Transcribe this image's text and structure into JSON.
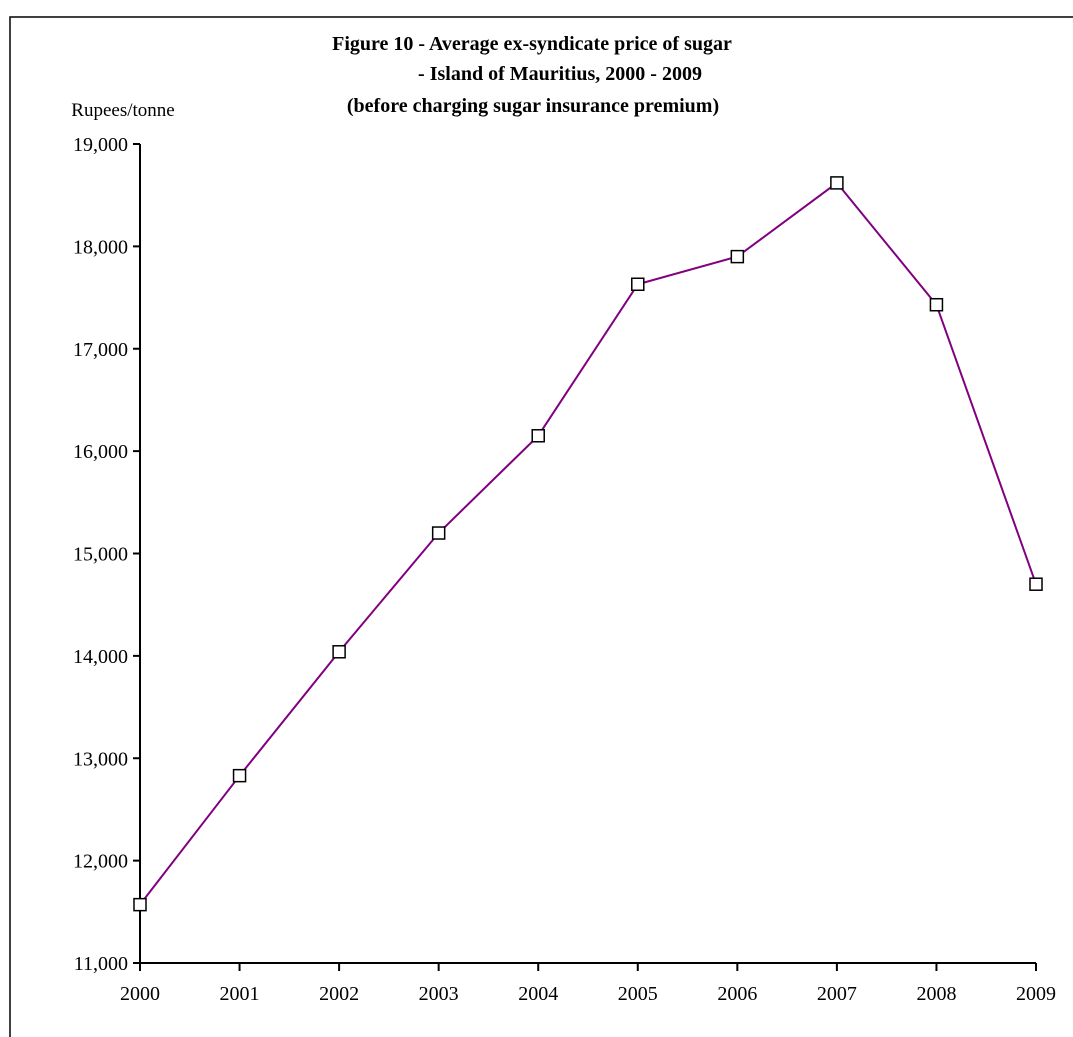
{
  "chart_data": {
    "type": "line",
    "title_lines": [
      "Figure 10 - Average ex-syndicate price of sugar",
      "- Island of Mauritius, 2000 - 2009",
      "(before charging sugar insurance premium)"
    ],
    "ylabel": "Rupees/tonne",
    "xlabel": "",
    "categories": [
      "2000",
      "2001",
      "2002",
      "2003",
      "2004",
      "2005",
      "2006",
      "2007",
      "2008",
      "2009"
    ],
    "ylim": [
      11000,
      19000
    ],
    "ytick_values": [
      11000,
      12000,
      13000,
      14000,
      15000,
      16000,
      17000,
      18000,
      19000
    ],
    "ytick_labels": [
      "11,000",
      "12,000",
      "13,000",
      "14,000",
      "15,000",
      "16,000",
      "17,000",
      "18,000",
      "19,000"
    ],
    "grid": false,
    "series": [
      {
        "values": [
          11570,
          12830,
          14040,
          15200,
          16150,
          17630,
          17900,
          18620,
          17430,
          14700
        ],
        "line_color": "#800080",
        "marker": "square-open"
      }
    ]
  }
}
